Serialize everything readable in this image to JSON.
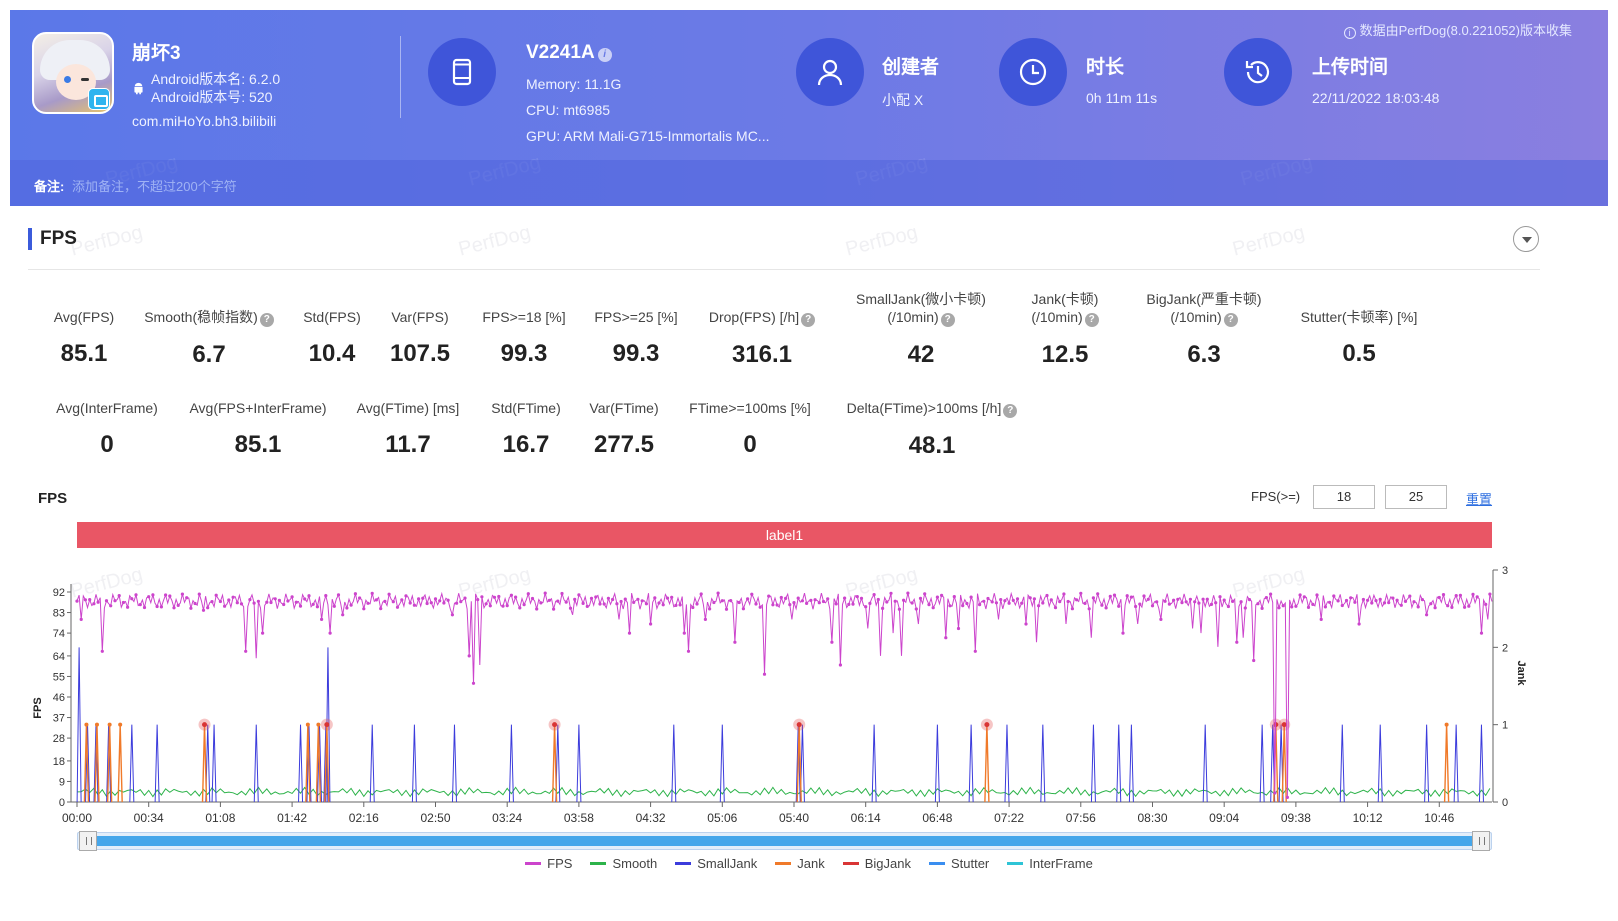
{
  "header": {
    "source_note": "数据由PerfDog(8.0.221052)版本收集",
    "app": {
      "name": "崩坏3",
      "version_name": "Android版本名: 6.2.0",
      "version_code": "Android版本号: 520",
      "package": "com.miHoYo.bh3.bilibili"
    },
    "device": {
      "name": "V2241A",
      "memory": "Memory: 11.1G",
      "cpu": "CPU: mt6985",
      "gpu": "GPU: ARM Mali-G715-Immortalis MC..."
    },
    "creator": {
      "title": "创建者",
      "value": "小配 X"
    },
    "duration": {
      "title": "时长",
      "value": "0h 11m 11s"
    },
    "upload": {
      "title": "上传时间",
      "value": "22/11/2022 18:03:48"
    },
    "note": {
      "label": "备注:",
      "placeholder": "添加备注，不超过200个字符"
    },
    "watermark": "PerfDog"
  },
  "section": {
    "title": "FPS"
  },
  "stats_row1": [
    {
      "label1": "",
      "label2": "Avg(FPS)",
      "help": false,
      "value": "85.1"
    },
    {
      "label1": "",
      "label2": "Smooth(稳帧指数)",
      "help": true,
      "value": "6.7"
    },
    {
      "label1": "",
      "label2": "Std(FPS)",
      "help": false,
      "value": "10.4"
    },
    {
      "label1": "",
      "label2": "Var(FPS)",
      "help": false,
      "value": "107.5"
    },
    {
      "label1": "",
      "label2": "FPS>=18 [%]",
      "help": false,
      "value": "99.3"
    },
    {
      "label1": "",
      "label2": "FPS>=25 [%]",
      "help": false,
      "value": "99.3"
    },
    {
      "label1": "",
      "label2": "Drop(FPS) [/h]",
      "help": true,
      "value": "316.1"
    },
    {
      "label1": "SmallJank(微小卡顿)",
      "label2": "(/10min)",
      "help": true,
      "value": "42"
    },
    {
      "label1": "Jank(卡顿)",
      "label2": "(/10min)",
      "help": true,
      "value": "12.5"
    },
    {
      "label1": "BigJank(严重卡顿)",
      "label2": "(/10min)",
      "help": true,
      "value": "6.3"
    },
    {
      "label1": "",
      "label2": "Stutter(卡顿率) [%]",
      "help": false,
      "value": "0.5"
    }
  ],
  "stats_row2": [
    {
      "label": "Avg(InterFrame)",
      "help": false,
      "value": "0"
    },
    {
      "label": "Avg(FPS+InterFrame)",
      "help": false,
      "value": "85.1"
    },
    {
      "label": "Avg(FTime) [ms]",
      "help": false,
      "value": "11.7"
    },
    {
      "label": "Std(FTime)",
      "help": false,
      "value": "16.7"
    },
    {
      "label": "Var(FTime)",
      "help": false,
      "value": "277.5"
    },
    {
      "label": "FTime>=100ms [%]",
      "help": false,
      "value": "0"
    },
    {
      "label": "Delta(FTime)>100ms [/h]",
      "help": true,
      "value": "48.1"
    }
  ],
  "chart_controls": {
    "title": "FPS",
    "threshold_label": "FPS(>=)",
    "threshold_low": "18",
    "threshold_high": "25",
    "reset": "重置",
    "label_bar": "label1"
  },
  "chart_data": {
    "type": "line",
    "ylabel": "FPS",
    "y2label": "Jank",
    "y_ticks": [
      "0",
      "9",
      "18",
      "28",
      "37",
      "46",
      "55",
      "64",
      "74",
      "83",
      "92"
    ],
    "y2_ticks": [
      "0",
      "1",
      "2",
      "3"
    ],
    "ylim": [
      0,
      92
    ],
    "y2lim": [
      0,
      3
    ],
    "x_ticks": [
      "00:00",
      "00:34",
      "01:08",
      "01:42",
      "02:16",
      "02:50",
      "03:24",
      "03:58",
      "04:32",
      "05:06",
      "05:40",
      "06:14",
      "06:48",
      "07:22",
      "07:56",
      "08:30",
      "09:04",
      "09:38",
      "10:12",
      "10:46"
    ],
    "duration_s": 671,
    "series": [
      {
        "name": "FPS",
        "color": "#cc44cc"
      },
      {
        "name": "Smooth",
        "color": "#2db34a"
      },
      {
        "name": "SmallJank",
        "color": "#3c3cdc"
      },
      {
        "name": "Jank",
        "color": "#f07a2a"
      },
      {
        "name": "BigJank",
        "color": "#d93535"
      },
      {
        "name": "Stutter",
        "color": "#3a8ef0"
      },
      {
        "name": "InterFrame",
        "color": "#2ec4d6"
      }
    ],
    "fps_baseline": 88,
    "fps_dips": [
      {
        "t": 2,
        "v": 80
      },
      {
        "t": 12,
        "v": 66
      },
      {
        "t": 60,
        "v": 84
      },
      {
        "t": 80,
        "v": 66
      },
      {
        "t": 85,
        "v": 63
      },
      {
        "t": 88,
        "v": 74
      },
      {
        "t": 116,
        "v": 80
      },
      {
        "t": 120,
        "v": 74
      },
      {
        "t": 126,
        "v": 82
      },
      {
        "t": 178,
        "v": 82
      },
      {
        "t": 186,
        "v": 64
      },
      {
        "t": 188,
        "v": 52
      },
      {
        "t": 191,
        "v": 60
      },
      {
        "t": 235,
        "v": 82
      },
      {
        "t": 257,
        "v": 80
      },
      {
        "t": 262,
        "v": 74
      },
      {
        "t": 262,
        "v": 74
      },
      {
        "t": 272,
        "v": 78
      },
      {
        "t": 288,
        "v": 74
      },
      {
        "t": 290,
        "v": 66
      },
      {
        "t": 298,
        "v": 80
      },
      {
        "t": 312,
        "v": 70
      },
      {
        "t": 326,
        "v": 56
      },
      {
        "t": 339,
        "v": 80
      },
      {
        "t": 358,
        "v": 70
      },
      {
        "t": 362,
        "v": 60
      },
      {
        "t": 375,
        "v": 76
      },
      {
        "t": 381,
        "v": 64
      },
      {
        "t": 387,
        "v": 74
      },
      {
        "t": 391,
        "v": 64
      },
      {
        "t": 399,
        "v": 78
      },
      {
        "t": 412,
        "v": 72
      },
      {
        "t": 418,
        "v": 76
      },
      {
        "t": 426,
        "v": 66
      },
      {
        "t": 437,
        "v": 80
      },
      {
        "t": 450,
        "v": 78
      },
      {
        "t": 455,
        "v": 70
      },
      {
        "t": 469,
        "v": 78
      },
      {
        "t": 481,
        "v": 72
      },
      {
        "t": 496,
        "v": 74
      },
      {
        "t": 503,
        "v": 78
      },
      {
        "t": 514,
        "v": 80
      },
      {
        "t": 529,
        "v": 76
      },
      {
        "t": 533,
        "v": 74
      },
      {
        "t": 541,
        "v": 68
      },
      {
        "t": 550,
        "v": 70
      },
      {
        "t": 553,
        "v": 72
      },
      {
        "t": 558,
        "v": 62
      },
      {
        "t": 568,
        "v": 4
      },
      {
        "t": 572,
        "v": 86
      },
      {
        "t": 574,
        "v": 2
      },
      {
        "t": 590,
        "v": 80
      },
      {
        "t": 608,
        "v": 78
      },
      {
        "t": 640,
        "v": 82
      },
      {
        "t": 666,
        "v": 74
      },
      {
        "t": 669,
        "v": 80
      }
    ],
    "smalljank_at": [
      1,
      5,
      9,
      15,
      26,
      38,
      62,
      65,
      85,
      106,
      110,
      115,
      118,
      119,
      140,
      160,
      179,
      206,
      228,
      238,
      283,
      306,
      342,
      344,
      378,
      408,
      424,
      441,
      458,
      482,
      494,
      500,
      535,
      562,
      567,
      571,
      600,
      618,
      640,
      654,
      666
    ],
    "jank_at": [
      4,
      9,
      15,
      20,
      60,
      109,
      114,
      118,
      226,
      342,
      431,
      568,
      572,
      649
    ],
    "bigjank_at": [
      60,
      118,
      226,
      342,
      431,
      568,
      572
    ]
  },
  "legend": [
    "FPS",
    "Smooth",
    "SmallJank",
    "Jank",
    "BigJank",
    "Stutter",
    "InterFrame"
  ]
}
